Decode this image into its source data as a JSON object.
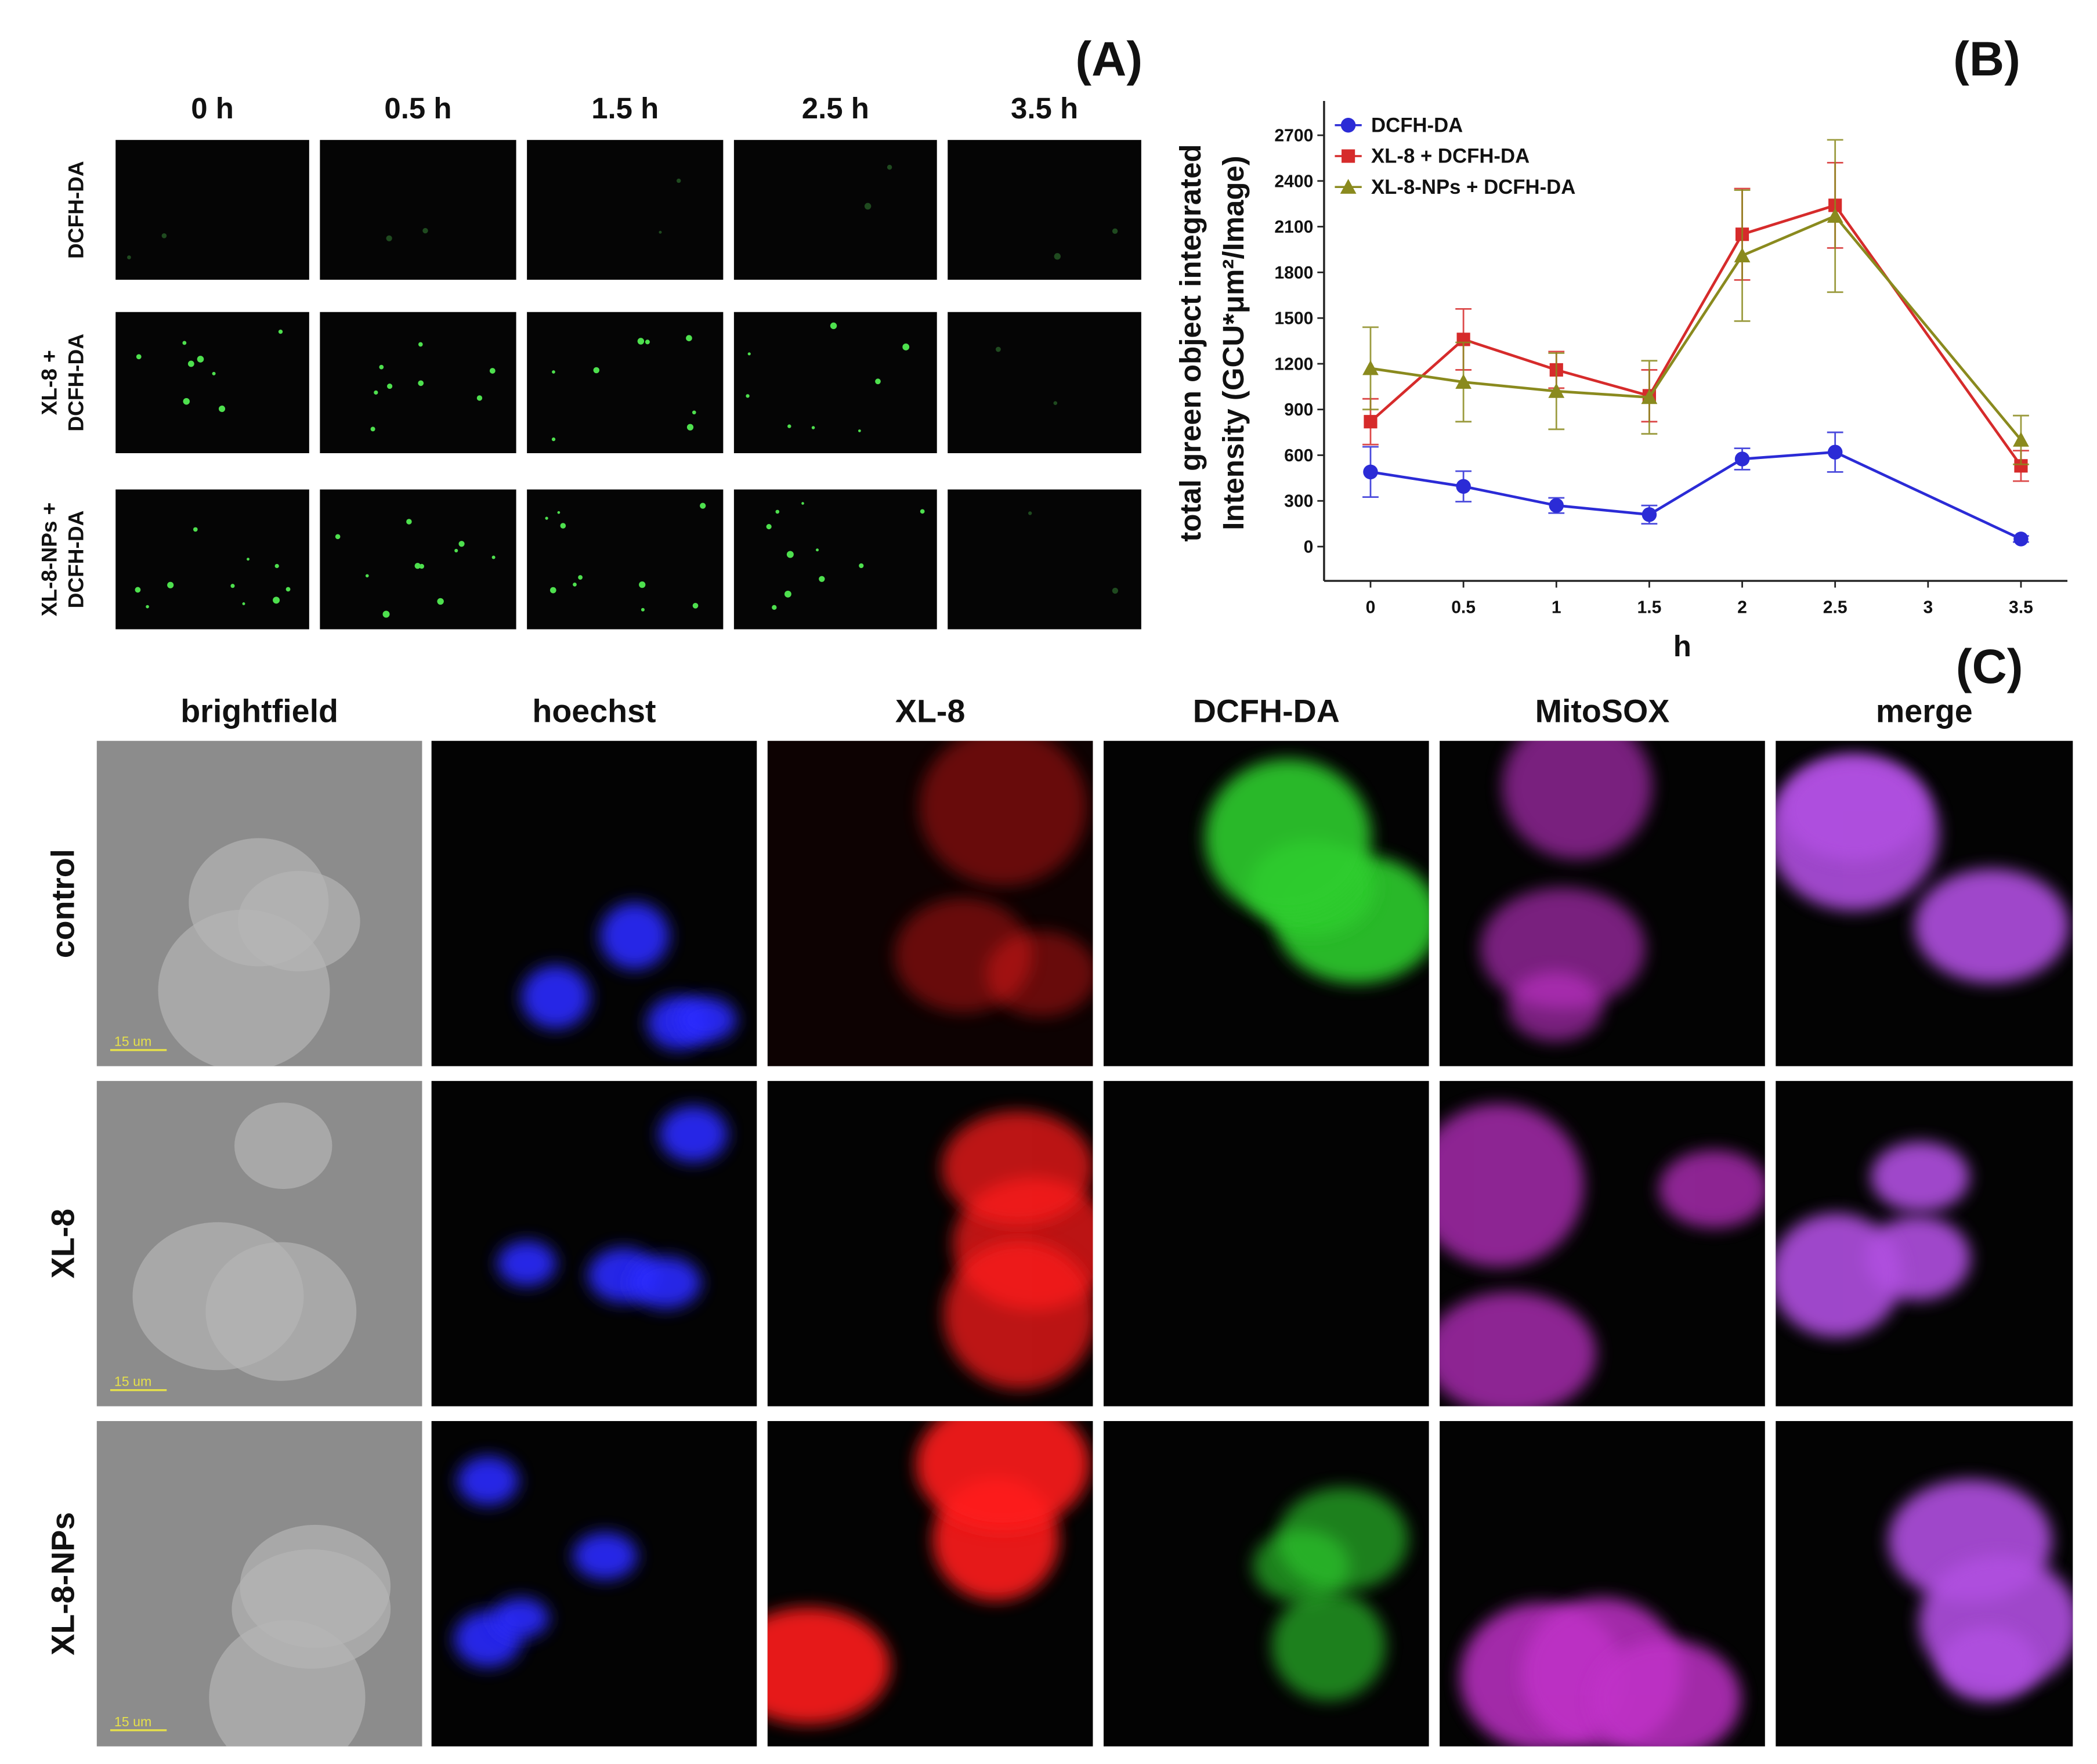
{
  "panel_a": {
    "label": "(A)",
    "columns": [
      "0 h",
      "0.5 h",
      "1.5 h",
      "2.5 h",
      "3.5 h"
    ],
    "rows": [
      [
        "DCFH-DA"
      ],
      [
        "XL-8 +",
        "DCFH-DA"
      ],
      [
        "XL-8-NPs +",
        "DCFH-DA"
      ]
    ]
  },
  "chart_data": {
    "type": "line",
    "label": "(B)",
    "y_label": [
      "total green object integrated",
      "Intensity (GCU*μm²/Image)"
    ],
    "x_label": "h",
    "x": [
      0,
      0.5,
      1,
      1.5,
      2,
      2.5,
      3.5
    ],
    "xlim": [
      -0.25,
      3.75
    ],
    "xticks": [
      0,
      0.5,
      1,
      1.5,
      2,
      2.5,
      3,
      3.5
    ],
    "ylim": [
      -225,
      2925
    ],
    "yticks": [
      0,
      300,
      600,
      900,
      1200,
      1500,
      1800,
      2100,
      2400,
      2700
    ],
    "legend": "top-left",
    "series": [
      {
        "name": "DCFH-DA",
        "color": "#2b2bd6",
        "marker": "circle",
        "values": [
          490,
          395,
          270,
          210,
          575,
          620,
          50
        ],
        "errors": [
          165,
          100,
          50,
          60,
          70,
          130,
          20
        ]
      },
      {
        "name": "XL-8 + DCFH-DA",
        "color": "#d62b2b",
        "marker": "square",
        "values": [
          820,
          1360,
          1160,
          990,
          2050,
          2240,
          530
        ],
        "errors": [
          150,
          200,
          120,
          170,
          300,
          280,
          100
        ]
      },
      {
        "name": "XL-8-NPs + DCFH-DA",
        "color": "#8a8a1e",
        "marker": "triangle",
        "values": [
          1170,
          1080,
          1020,
          980,
          1910,
          2170,
          700
        ],
        "errors": [
          270,
          260,
          250,
          240,
          430,
          500,
          160
        ]
      }
    ]
  },
  "panel_c": {
    "label": "(C)",
    "columns": [
      "brightfield",
      "hoechst",
      "XL-8",
      "DCFH-DA",
      "MitoSOX",
      "merge"
    ],
    "rows": [
      "control",
      "XL-8",
      "XL-8-NPs"
    ],
    "scale_bars": [
      "15 um",
      "15 um",
      "15 um"
    ]
  }
}
